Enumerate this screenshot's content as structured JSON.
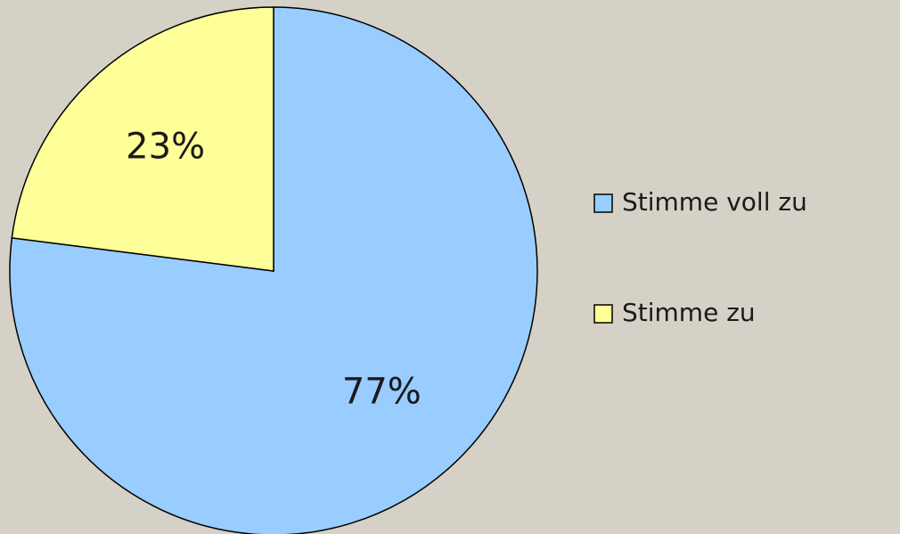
{
  "chart_data": {
    "type": "pie",
    "categories": [
      "Stimme voll zu",
      "Stimme zu"
    ],
    "values": [
      77,
      23
    ],
    "value_labels": [
      "77%",
      "23%"
    ],
    "colors": [
      "#99ccff",
      "#ffff99"
    ],
    "legend": "right"
  }
}
